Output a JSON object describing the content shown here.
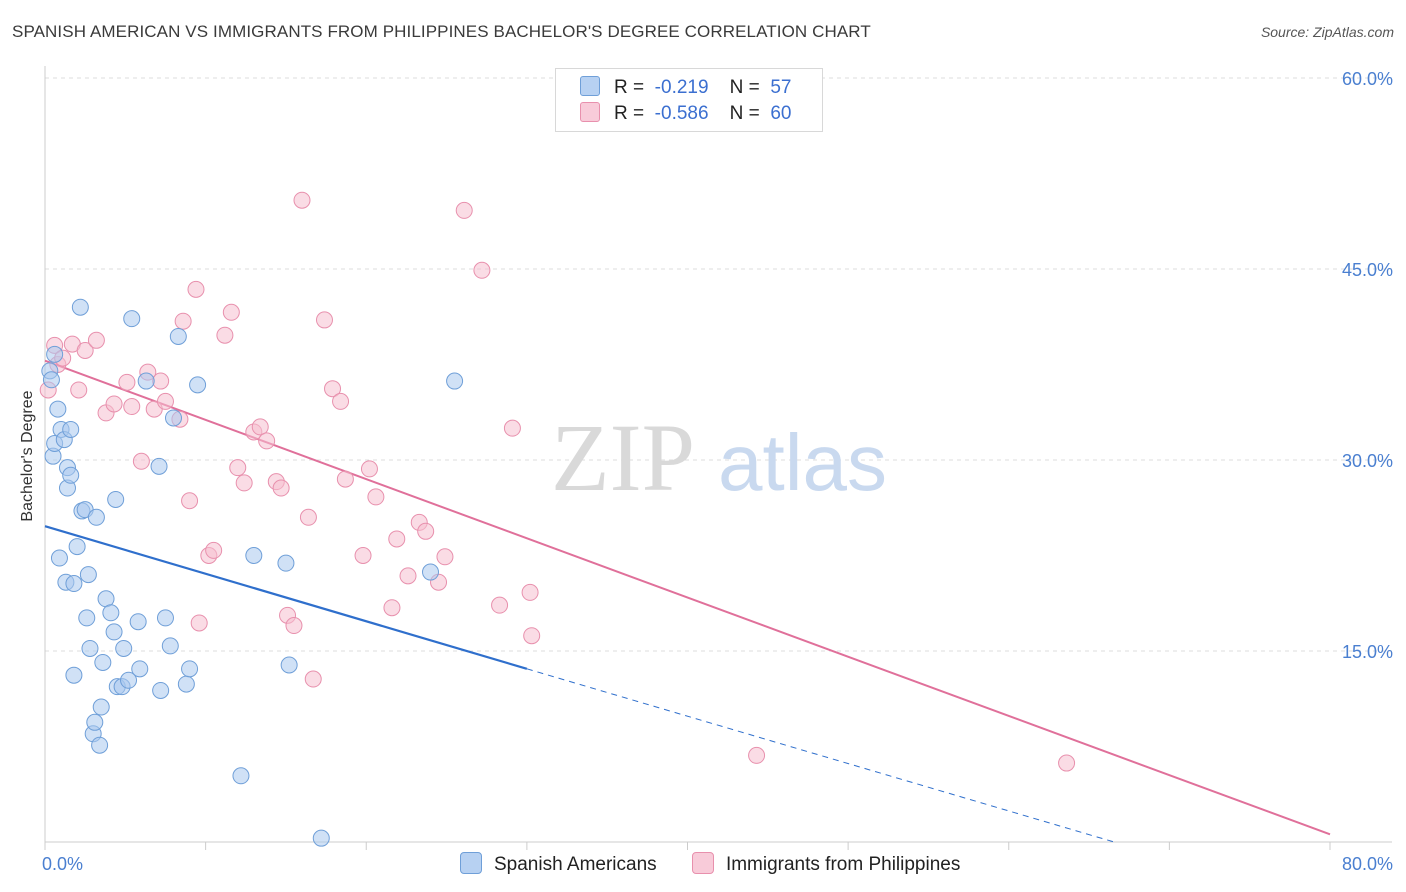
{
  "title": "SPANISH AMERICAN VS IMMIGRANTS FROM PHILIPPINES BACHELOR'S DEGREE CORRELATION CHART",
  "source": "Source: ZipAtlas.com",
  "watermark": {
    "zip": "ZIP",
    "atlas": "atlas"
  },
  "legend": {
    "rows": [
      {
        "r_label": "R =",
        "r_value": "-0.219",
        "n_label": "N =",
        "n_value": "57"
      },
      {
        "r_label": "R =",
        "r_value": "-0.586",
        "n_label": "N =",
        "n_value": "60"
      }
    ]
  },
  "colors": {
    "blue_fill": "#a9c8ef",
    "blue_stroke": "#6f9fd8",
    "blue_line": "#2f6fcc",
    "pink_fill": "#f5bfd0",
    "pink_stroke": "#e890ad",
    "pink_line": "#e0709a",
    "grid": "#dddddd",
    "axis_text": "#4a7fd0"
  },
  "chart_data": {
    "type": "scatter",
    "title": "SPANISH AMERICAN VS IMMIGRANTS FROM PHILIPPINES BACHELOR'S DEGREE CORRELATION CHART",
    "xlabel": "",
    "ylabel": "Bachelor's Degree",
    "xlim": [
      0,
      80
    ],
    "ylim": [
      0,
      60
    ],
    "x_tick_labels": [
      "0.0%",
      "80.0%"
    ],
    "y_tick_labels": [
      "15.0%",
      "30.0%",
      "45.0%",
      "60.0%"
    ],
    "y_ticks": [
      15,
      30,
      45,
      60
    ],
    "series": [
      {
        "name": "Spanish Americans",
        "r": -0.219,
        "n": 57,
        "trend": {
          "x0": 0,
          "y0": 24.8,
          "x1": 30,
          "y1": 13.6,
          "dash_to_x": 80,
          "dash_to_y": -5.0
        },
        "points": [
          [
            0.3,
            37.0
          ],
          [
            0.4,
            36.3
          ],
          [
            0.5,
            30.3
          ],
          [
            0.6,
            38.3
          ],
          [
            0.6,
            31.3
          ],
          [
            0.8,
            34.0
          ],
          [
            0.9,
            22.3
          ],
          [
            1.0,
            32.4
          ],
          [
            1.2,
            31.6
          ],
          [
            1.3,
            20.4
          ],
          [
            1.4,
            27.8
          ],
          [
            1.4,
            29.4
          ],
          [
            1.6,
            32.4
          ],
          [
            1.6,
            28.8
          ],
          [
            1.8,
            13.1
          ],
          [
            1.8,
            20.3
          ],
          [
            2.0,
            23.2
          ],
          [
            2.2,
            42.0
          ],
          [
            2.3,
            26.0
          ],
          [
            2.5,
            26.1
          ],
          [
            2.6,
            17.6
          ],
          [
            2.7,
            21.0
          ],
          [
            2.8,
            15.2
          ],
          [
            3.0,
            8.5
          ],
          [
            3.1,
            9.4
          ],
          [
            3.2,
            25.5
          ],
          [
            3.4,
            7.6
          ],
          [
            3.5,
            10.6
          ],
          [
            3.6,
            14.1
          ],
          [
            3.8,
            19.1
          ],
          [
            4.1,
            18.0
          ],
          [
            4.3,
            16.5
          ],
          [
            4.4,
            26.9
          ],
          [
            4.5,
            12.2
          ],
          [
            4.8,
            12.2
          ],
          [
            4.9,
            15.2
          ],
          [
            5.2,
            12.7
          ],
          [
            5.4,
            41.1
          ],
          [
            5.8,
            17.3
          ],
          [
            5.9,
            13.6
          ],
          [
            6.3,
            36.2
          ],
          [
            7.1,
            29.5
          ],
          [
            7.2,
            11.9
          ],
          [
            7.5,
            17.6
          ],
          [
            7.8,
            15.4
          ],
          [
            8.0,
            33.3
          ],
          [
            8.3,
            39.7
          ],
          [
            8.8,
            12.4
          ],
          [
            9.0,
            13.6
          ],
          [
            9.5,
            35.9
          ],
          [
            12.2,
            5.2
          ],
          [
            13.0,
            22.5
          ],
          [
            15.0,
            21.9
          ],
          [
            15.2,
            13.9
          ],
          [
            17.2,
            0.3
          ],
          [
            24.0,
            21.2
          ],
          [
            25.5,
            36.2
          ]
        ]
      },
      {
        "name": "Immigrants from Philippines",
        "r": -0.586,
        "n": 60,
        "trend": {
          "x0": 0,
          "y0": 37.8,
          "x1": 80,
          "y1": 0.6
        },
        "points": [
          [
            0.2,
            35.5
          ],
          [
            0.6,
            39.0
          ],
          [
            0.8,
            37.5
          ],
          [
            1.1,
            38.0
          ],
          [
            1.7,
            39.1
          ],
          [
            2.1,
            35.5
          ],
          [
            2.5,
            38.6
          ],
          [
            3.2,
            39.4
          ],
          [
            3.8,
            33.7
          ],
          [
            4.3,
            34.4
          ],
          [
            5.1,
            36.1
          ],
          [
            5.4,
            34.2
          ],
          [
            6.0,
            29.9
          ],
          [
            6.4,
            36.9
          ],
          [
            6.8,
            34.0
          ],
          [
            7.2,
            36.2
          ],
          [
            7.5,
            34.6
          ],
          [
            8.4,
            33.2
          ],
          [
            8.6,
            40.9
          ],
          [
            9.0,
            26.8
          ],
          [
            9.4,
            43.4
          ],
          [
            9.6,
            17.2
          ],
          [
            10.2,
            22.5
          ],
          [
            10.5,
            22.9
          ],
          [
            11.2,
            39.8
          ],
          [
            11.6,
            41.6
          ],
          [
            12.0,
            29.4
          ],
          [
            12.4,
            28.2
          ],
          [
            13.0,
            32.2
          ],
          [
            13.4,
            32.6
          ],
          [
            13.8,
            31.5
          ],
          [
            14.4,
            28.3
          ],
          [
            14.7,
            27.8
          ],
          [
            15.1,
            17.8
          ],
          [
            15.5,
            17.0
          ],
          [
            16.4,
            25.5
          ],
          [
            16.0,
            50.4
          ],
          [
            16.7,
            12.8
          ],
          [
            17.4,
            41.0
          ],
          [
            17.9,
            35.6
          ],
          [
            18.4,
            34.6
          ],
          [
            18.7,
            28.5
          ],
          [
            19.8,
            22.5
          ],
          [
            20.2,
            29.3
          ],
          [
            20.6,
            27.1
          ],
          [
            21.6,
            18.4
          ],
          [
            21.9,
            23.8
          ],
          [
            22.6,
            20.9
          ],
          [
            23.3,
            25.1
          ],
          [
            23.7,
            24.4
          ],
          [
            24.5,
            20.4
          ],
          [
            24.9,
            22.4
          ],
          [
            26.1,
            49.6
          ],
          [
            27.2,
            44.9
          ],
          [
            28.3,
            18.6
          ],
          [
            29.1,
            32.5
          ],
          [
            30.2,
            19.6
          ],
          [
            30.3,
            16.2
          ],
          [
            44.3,
            6.8
          ],
          [
            63.6,
            6.2
          ]
        ]
      }
    ]
  },
  "bottom_legend": {
    "items": [
      "Spanish Americans",
      "Immigrants from Philippines"
    ]
  }
}
